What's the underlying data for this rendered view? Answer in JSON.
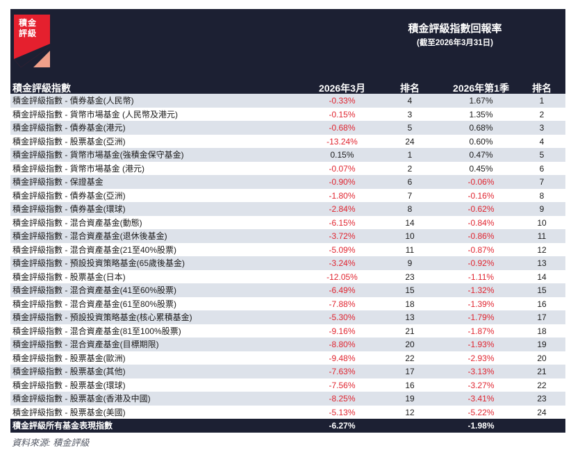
{
  "logo": {
    "line1": "積金",
    "line2": "評級",
    "red": "#e5202e",
    "salmon": "#f0a08a"
  },
  "header": {
    "title": "積金評級指數回報率",
    "subtitle": "(截至2026年3月31日)"
  },
  "columns": {
    "name": "積金評級指數",
    "month": "2026年3月",
    "rank1": "排名",
    "quarter": "2026年第1季",
    "rank2": "排名"
  },
  "rows": [
    {
      "name": "積金評級指數 - 債券基金(人民幣)",
      "month": "-0.33%",
      "rank1": "4",
      "quarter": "1.67%",
      "rank2": "1"
    },
    {
      "name": "積金評級指數 - 貨幣市場基金 (人民幣及港元)",
      "month": "-0.15%",
      "rank1": "3",
      "quarter": "1.35%",
      "rank2": "2"
    },
    {
      "name": "積金評級指數 - 債券基金(港元)",
      "month": "-0.68%",
      "rank1": "5",
      "quarter": "0.68%",
      "rank2": "3"
    },
    {
      "name": "積金評級指數 - 股票基金(亞洲)",
      "month": "-13.24%",
      "rank1": "24",
      "quarter": "0.60%",
      "rank2": "4"
    },
    {
      "name": "積金評級指數 - 貨幣市場基金(強積金保守基金)",
      "month": "0.15%",
      "rank1": "1",
      "quarter": "0.47%",
      "rank2": "5"
    },
    {
      "name": "積金評級指數 - 貨幣市場基金 (港元)",
      "month": "-0.07%",
      "rank1": "2",
      "quarter": "0.45%",
      "rank2": "6"
    },
    {
      "name": "積金評級指數 - 保證基金",
      "month": "-0.90%",
      "rank1": "6",
      "quarter": "-0.06%",
      "rank2": "7"
    },
    {
      "name": "積金評級指數 - 債券基金(亞洲)",
      "month": "-1.80%",
      "rank1": "7",
      "quarter": "-0.16%",
      "rank2": "8"
    },
    {
      "name": "積金評級指數 - 債券基金(環球)",
      "month": "-2.84%",
      "rank1": "8",
      "quarter": "-0.62%",
      "rank2": "9"
    },
    {
      "name": "積金評級指數 - 混合資產基金(動態)",
      "month": "-6.15%",
      "rank1": "14",
      "quarter": "-0.84%",
      "rank2": "10"
    },
    {
      "name": "積金評級指數 - 混合資產基金(退休後基金)",
      "month": "-3.72%",
      "rank1": "10",
      "quarter": "-0.86%",
      "rank2": "11"
    },
    {
      "name": "積金評級指數 - 混合資產基金(21至40%股票)",
      "month": "-5.09%",
      "rank1": "11",
      "quarter": "-0.87%",
      "rank2": "12"
    },
    {
      "name": "積金評級指數 - 預設投資策略基金(65歲後基金)",
      "month": "-3.24%",
      "rank1": "9",
      "quarter": "-0.92%",
      "rank2": "13"
    },
    {
      "name": "積金評級指數 - 股票基金(日本)",
      "month": "-12.05%",
      "rank1": "23",
      "quarter": "-1.11%",
      "rank2": "14"
    },
    {
      "name": "積金評級指數 - 混合資產基金(41至60%股票)",
      "month": "-6.49%",
      "rank1": "15",
      "quarter": "-1.32%",
      "rank2": "15"
    },
    {
      "name": "積金評級指數 - 混合資產基金(61至80%股票)",
      "month": "-7.88%",
      "rank1": "18",
      "quarter": "-1.39%",
      "rank2": "16"
    },
    {
      "name": "積金評級指數 - 預設投資策略基金(核心累積基金)",
      "month": "-5.30%",
      "rank1": "13",
      "quarter": "-1.79%",
      "rank2": "17"
    },
    {
      "name": "積金評級指數 - 混合資產基金(81至100%股票)",
      "month": "-9.16%",
      "rank1": "21",
      "quarter": "-1.87%",
      "rank2": "18"
    },
    {
      "name": "積金評級指數 - 混合資產基金(目標期限)",
      "month": "-8.80%",
      "rank1": "20",
      "quarter": "-1.93%",
      "rank2": "19"
    },
    {
      "name": "積金評級指數 - 股票基金(歐洲)",
      "month": "-9.48%",
      "rank1": "22",
      "quarter": "-2.93%",
      "rank2": "20"
    },
    {
      "name": "積金評級指數 - 股票基金(其他)",
      "month": "-7.63%",
      "rank1": "17",
      "quarter": "-3.13%",
      "rank2": "21"
    },
    {
      "name": "積金評級指數 - 股票基金(環球)",
      "month": "-7.56%",
      "rank1": "16",
      "quarter": "-3.27%",
      "rank2": "22"
    },
    {
      "name": "積金評級指數 - 股票基金(香港及中國)",
      "month": "-8.25%",
      "rank1": "19",
      "quarter": "-3.41%",
      "rank2": "23"
    },
    {
      "name": "積金評級指數 - 股票基金(美國)",
      "month": "-5.13%",
      "rank1": "12",
      "quarter": "-5.22%",
      "rank2": "24"
    }
  ],
  "total": {
    "name": "積金評級所有基金表現指數",
    "month": "-6.27%",
    "quarter": "-1.98%"
  },
  "source": "資料來源:   積金評級",
  "colors": {
    "header_bg": "#1c2033",
    "negative": "#e0242f",
    "stripe": "#dde2ea"
  }
}
